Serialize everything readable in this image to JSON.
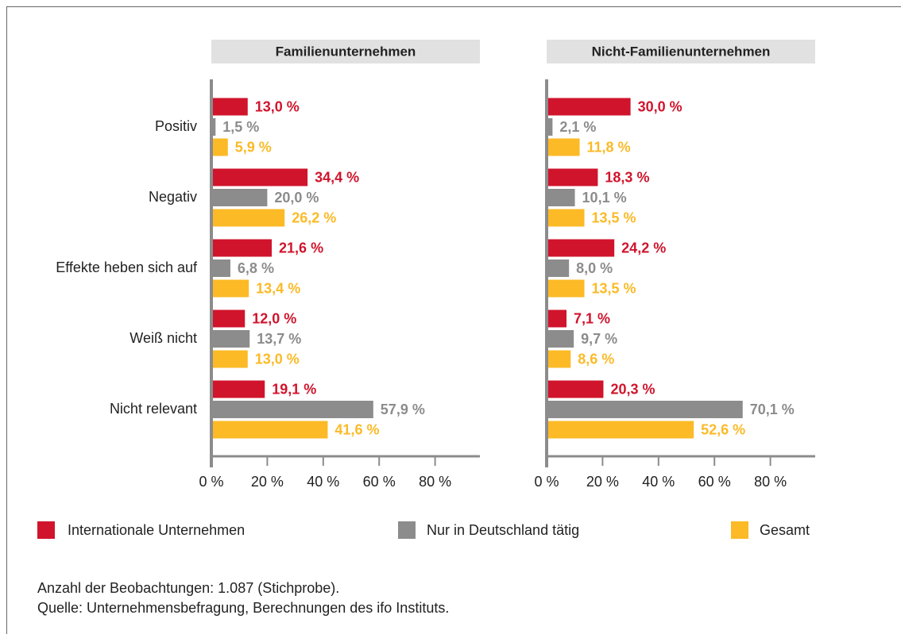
{
  "chart_data": [
    {
      "type": "barh",
      "title": "Familienunternehmen",
      "categories": [
        "Positiv",
        "Negativ",
        "Effekte heben sich auf",
        "Weiß nicht",
        "Nicht relevant"
      ],
      "series": [
        {
          "name": "Internationale Unternehmen",
          "color": "#d0142c",
          "values": [
            13.0,
            34.4,
            21.6,
            12.0,
            19.1
          ],
          "value_labels": [
            "13,0 %",
            "34,4 %",
            "21,6 %",
            "12,0 %",
            "19,1 %"
          ]
        },
        {
          "name": "Nur in Deutschland tätig",
          "color": "#8c8c8c",
          "values": [
            1.5,
            20.0,
            6.8,
            13.7,
            57.9
          ],
          "value_labels": [
            "1,5 %",
            "20,0  %",
            "6,8 %",
            "13,7 %",
            "57,9 %"
          ]
        },
        {
          "name": "Gesamt",
          "color": "#fbba26",
          "values": [
            5.9,
            26.2,
            13.4,
            13.0,
            41.6
          ],
          "value_labels": [
            "5,9 %",
            "26,2 %",
            "13,4 %",
            "13,0 %",
            "41,6 %"
          ]
        }
      ],
      "xlim": [
        0,
        100
      ],
      "xticks": [
        {
          "value": 0,
          "label": "0 %"
        },
        {
          "value": 20,
          "label": "20 %"
        },
        {
          "value": 40,
          "label": "40 %"
        },
        {
          "value": 60,
          "label": "60 %"
        },
        {
          "value": 80,
          "label": "80 %"
        }
      ]
    },
    {
      "type": "barh",
      "title": "Nicht-Familienunternehmen",
      "categories": [
        null,
        null,
        null,
        null,
        null
      ],
      "series": [
        {
          "name": "Internationale Unternehmen",
          "color": "#d0142c",
          "values": [
            30.0,
            18.3,
            24.2,
            7.1,
            20.3
          ],
          "value_labels": [
            "30,0 %",
            "18,3 %",
            "24,2 %",
            "7,1 %",
            "20,3 %"
          ]
        },
        {
          "name": "Nur in Deutschland tätig",
          "color": "#8c8c8c",
          "values": [
            2.1,
            10.1,
            8.0,
            9.7,
            70.1
          ],
          "value_labels": [
            "2,1 %",
            "10,1 %",
            "8,0 %",
            "9,7 %",
            "70,1 %"
          ]
        },
        {
          "name": "Gesamt",
          "color": "#fbba26",
          "values": [
            11.8,
            13.5,
            13.5,
            8.6,
            52.6
          ],
          "value_labels": [
            "11,8 %",
            "13,5 %",
            "13,5 %",
            "8,6 %",
            "52,6 %"
          ]
        }
      ],
      "xlim": [
        0,
        100
      ],
      "xticks": [
        {
          "value": 0,
          "label": "0 %"
        },
        {
          "value": 20,
          "label": "20 %"
        },
        {
          "value": 40,
          "label": "40 %"
        },
        {
          "value": 60,
          "label": "60 %"
        },
        {
          "value": 80,
          "label": "80 %"
        }
      ]
    }
  ],
  "notes": [
    "Anzahl der Beobachtungen: 1.087 (Stichprobe).",
    "Quelle: Unternehmensbefragung, Berechnungen des ifo Instituts."
  ]
}
